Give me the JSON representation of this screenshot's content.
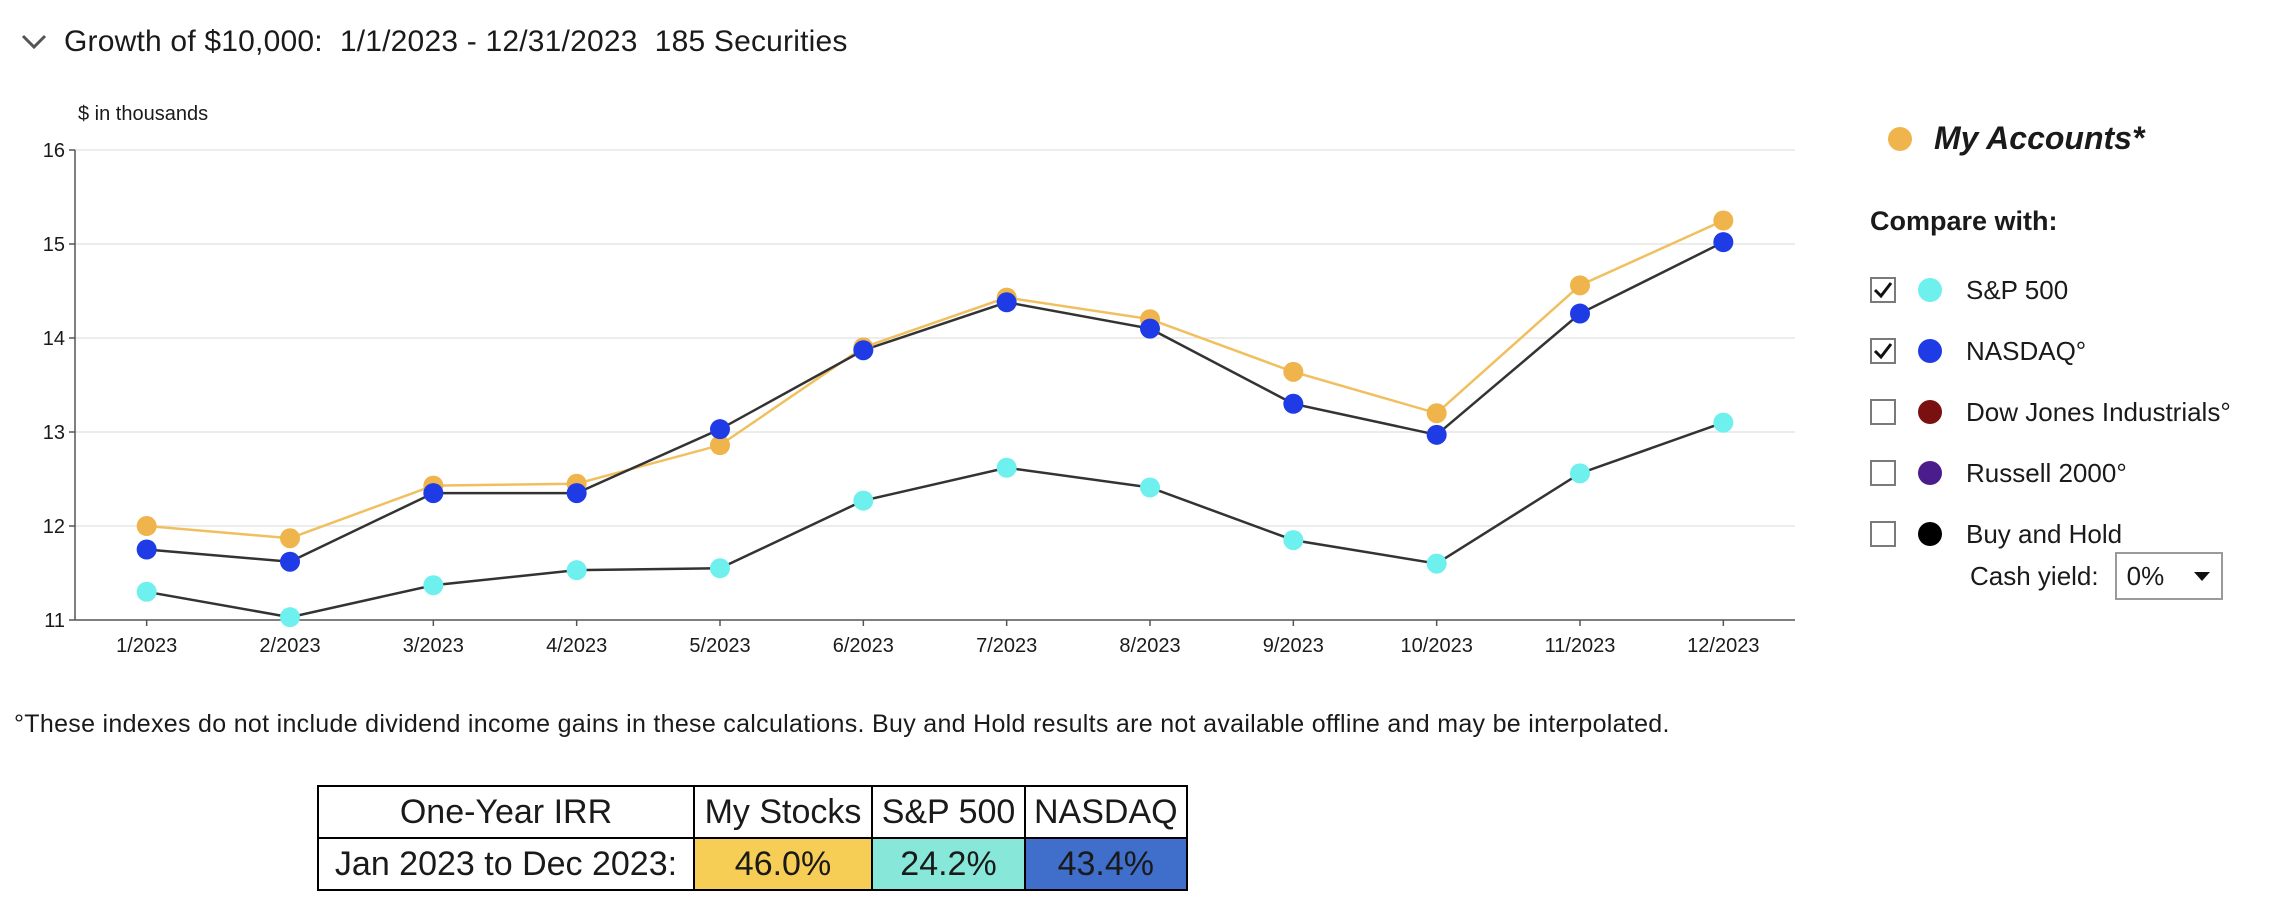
{
  "header": {
    "title": "Growth of $10,000:  1/1/2023 - 12/31/2023  185 Securities",
    "collapse_icon": "chevron-down-icon"
  },
  "chart_data": {
    "type": "line",
    "ylabel": "$ in thousands",
    "ylim": [
      11,
      16
    ],
    "yticks": [
      11,
      12,
      13,
      14,
      15,
      16
    ],
    "grid": true,
    "categories": [
      "1/2023",
      "2/2023",
      "3/2023",
      "4/2023",
      "5/2023",
      "6/2023",
      "7/2023",
      "8/2023",
      "9/2023",
      "10/2023",
      "11/2023",
      "12/2023"
    ],
    "series": [
      {
        "name": "My Accounts*",
        "color": "#F0B44C",
        "line_color": "#F0C060",
        "values": [
          12.0,
          11.87,
          12.43,
          12.45,
          12.86,
          13.9,
          14.43,
          14.2,
          13.64,
          13.2,
          14.56,
          15.25
        ]
      },
      {
        "name": "NASDAQ°",
        "color": "#1F3BE6",
        "line_color": "#333333",
        "values": [
          11.75,
          11.62,
          12.35,
          12.35,
          13.03,
          13.87,
          14.38,
          14.1,
          13.3,
          12.97,
          14.26,
          15.02
        ]
      },
      {
        "name": "S&P 500",
        "color": "#6EF0EE",
        "line_color": "#333333",
        "values": [
          11.3,
          11.03,
          11.37,
          11.53,
          11.55,
          12.27,
          12.62,
          12.41,
          11.85,
          11.6,
          12.56,
          13.1
        ]
      }
    ]
  },
  "legend": {
    "my_accounts": {
      "label": "My Accounts*",
      "color": "#F0B44C"
    },
    "compare_title": "Compare with:",
    "items": [
      {
        "label": "S&P 500",
        "color": "#6EF0EE",
        "checked": true
      },
      {
        "label": "NASDAQ°",
        "color": "#1F3BE6",
        "checked": true
      },
      {
        "label": "Dow Jones Industrials°",
        "color": "#7A1010",
        "checked": false
      },
      {
        "label": "Russell 2000°",
        "color": "#4B1C8C",
        "checked": false
      },
      {
        "label": "Buy and Hold",
        "color": "#000000",
        "checked": false
      }
    ],
    "cash_yield_label": "Cash yield:",
    "cash_yield_value": "0%"
  },
  "footnote": "°These indexes do not include dividend income gains in these calculations. Buy and Hold results are not available offline and may be interpolated.",
  "irr_table": {
    "header": [
      "One-Year IRR",
      "My Stocks",
      "S&P 500",
      "NASDAQ"
    ],
    "row_label": "Jan 2023 to Dec 2023:",
    "values": [
      "46.0%",
      "24.2%",
      "43.4%"
    ],
    "colors": [
      "#F7CE55",
      "#87E8DA",
      "#3F6FCB"
    ]
  }
}
